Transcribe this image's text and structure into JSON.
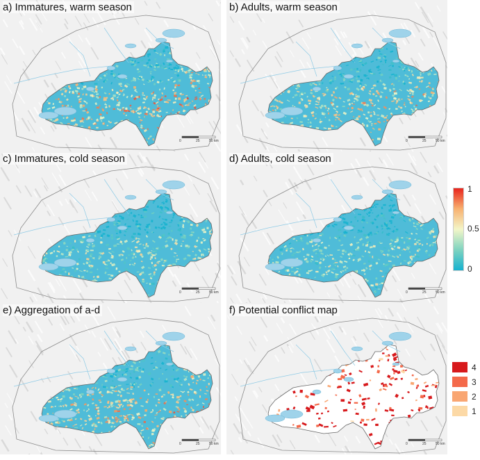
{
  "panels": [
    {
      "title": "a) Immatures, warm season",
      "type": "continuous",
      "intensity": 0.75
    },
    {
      "title": "b) Adults, warm season",
      "type": "continuous",
      "intensity": 0.6
    },
    {
      "title": "c) Immatures, cold season",
      "type": "continuous",
      "intensity": 0.35
    },
    {
      "title": "d) Adults, cold season",
      "type": "continuous",
      "intensity": 0.3
    },
    {
      "title": "e) Aggregation of a-d",
      "type": "continuous",
      "intensity": 0.65
    },
    {
      "title": "f) Potential conflict map",
      "type": "categorical"
    }
  ],
  "scalebar": {
    "labels": [
      "0",
      "25",
      "50 km"
    ]
  },
  "colorbar": {
    "max_label": "1",
    "mid_label": "0.5",
    "min_label": "0",
    "colors": [
      "#16b2cf",
      "#7fd3c0",
      "#f3f6c8",
      "#f8b170",
      "#e8241d"
    ]
  },
  "conflict_legend": [
    {
      "label": "4",
      "color": "#d7191c"
    },
    {
      "label": "3",
      "color": "#f4694a"
    },
    {
      "label": "2",
      "color": "#f9a672"
    },
    {
      "label": "1",
      "color": "#fcd9a6"
    }
  ]
}
